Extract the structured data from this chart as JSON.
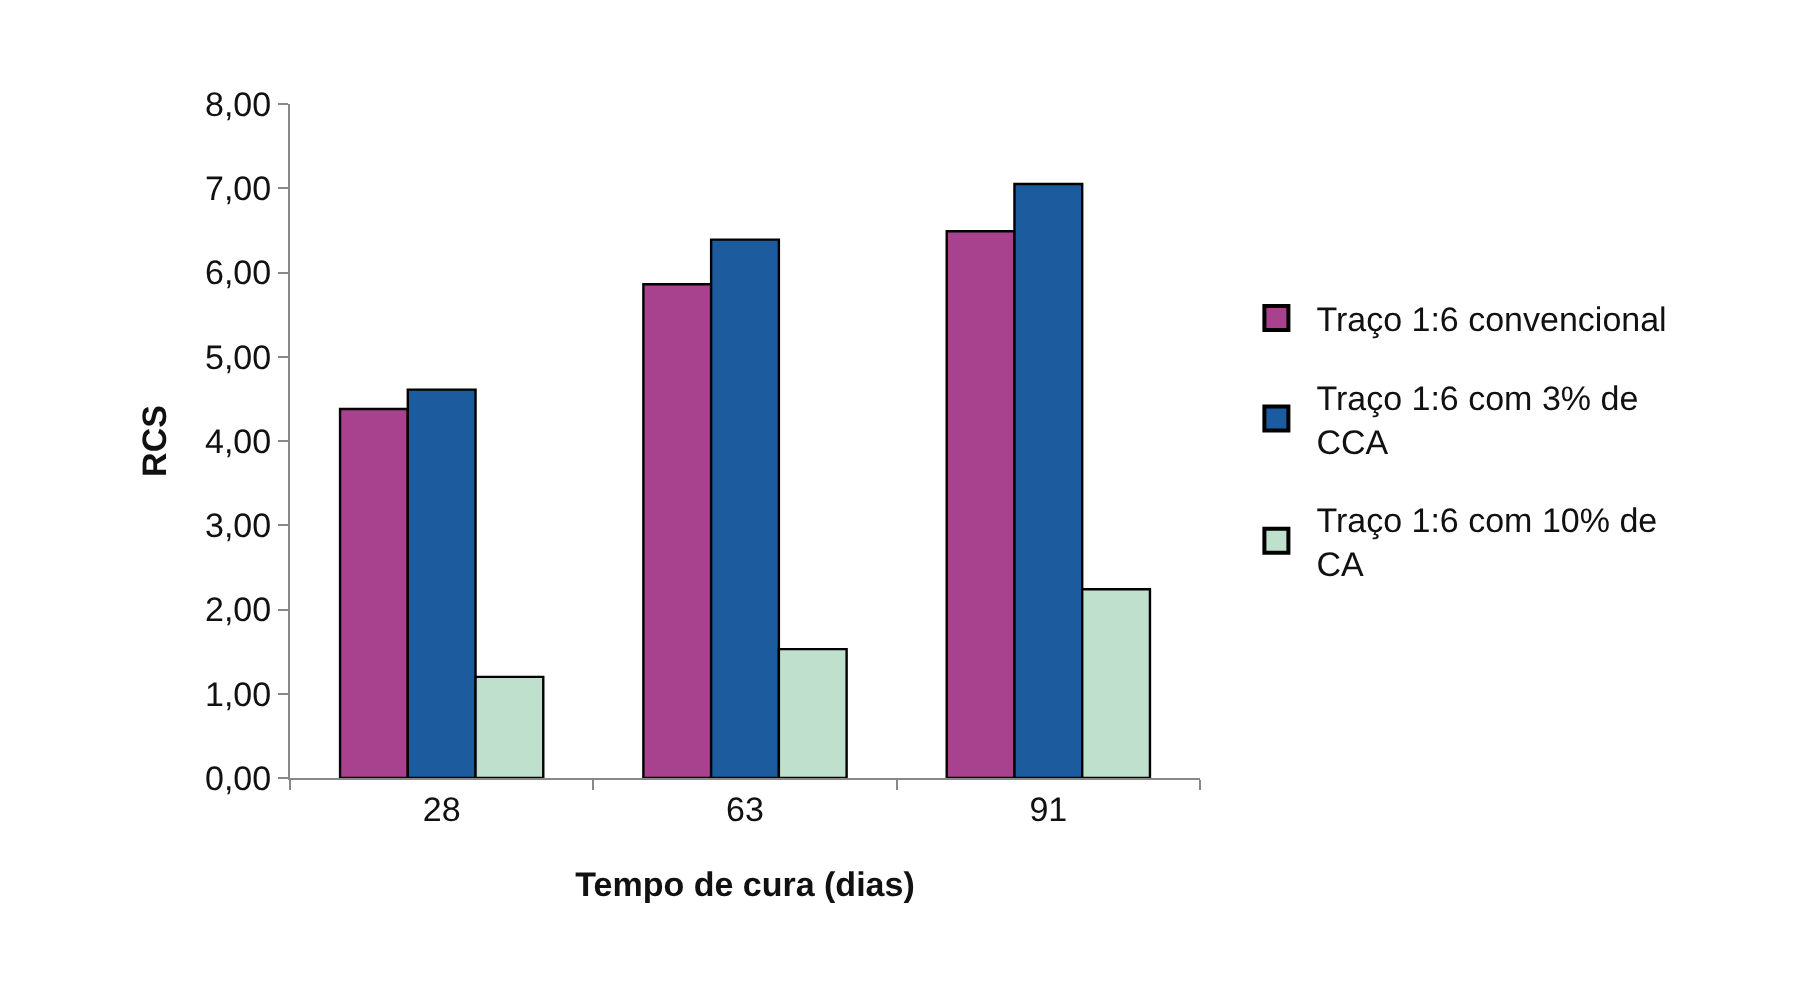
{
  "chart_data": {
    "type": "bar",
    "xlabel": "Tempo de cura (dias)",
    "ylabel": "RCS",
    "categories": [
      "28",
      "63",
      "91"
    ],
    "series": [
      {
        "name": "Traço 1:6 convencional",
        "color": "#a8428f",
        "values": [
          4.38,
          5.86,
          6.49
        ]
      },
      {
        "name": "Traço 1:6 com 3% de CCA",
        "color": "#1c5c9e",
        "values": [
          4.61,
          6.39,
          7.05
        ]
      },
      {
        "name": "Traço 1:6 com 10% de CA",
        "color": "#bfe0cc",
        "values": [
          1.2,
          1.53,
          2.24
        ]
      }
    ],
    "ylim": [
      0,
      8
    ],
    "yticks": [
      {
        "value": 0,
        "label": "0,00"
      },
      {
        "value": 1,
        "label": "1,00"
      },
      {
        "value": 2,
        "label": "2,00"
      },
      {
        "value": 3,
        "label": "3,00"
      },
      {
        "value": 4,
        "label": "4,00"
      },
      {
        "value": 5,
        "label": "5,00"
      },
      {
        "value": 6,
        "label": "6,00"
      },
      {
        "value": 7,
        "label": "7,00"
      },
      {
        "value": 8,
        "label": "8,00"
      }
    ],
    "grid": false,
    "legend": "right"
  }
}
